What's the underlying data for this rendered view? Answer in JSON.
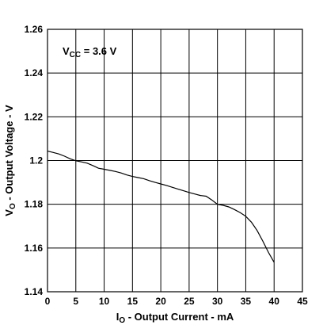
{
  "chart_data": {
    "type": "line",
    "title": "",
    "xlabel": {
      "main": "I",
      "sub": "O",
      "rest": " - Output Current - mA"
    },
    "ylabel": {
      "main": "V",
      "sub": "O",
      "rest": " - Output Voltage - V"
    },
    "xlim": [
      0,
      45
    ],
    "ylim": [
      1.14,
      1.26
    ],
    "xticks": [
      0,
      5,
      10,
      15,
      20,
      25,
      30,
      35,
      40,
      45
    ],
    "xtick_labels": [
      "0",
      "5",
      "10",
      "15",
      "20",
      "25",
      "30",
      "35",
      "40",
      "45"
    ],
    "yticks": [
      1.14,
      1.16,
      1.18,
      1.2,
      1.22,
      1.24,
      1.26
    ],
    "ytick_labels": [
      "1.14",
      "1.16",
      "1.18",
      "1.2",
      "1.22",
      "1.24",
      "1.26"
    ],
    "grid": true,
    "annotation": {
      "main": "V",
      "sub": "CC",
      "rest": " = 3.6 V"
    },
    "series": [
      {
        "x": [
          0,
          1,
          2,
          3,
          4,
          5,
          6,
          7,
          8,
          9,
          10,
          11,
          12,
          13,
          14,
          15,
          16,
          17,
          18,
          19,
          20,
          21,
          22,
          23,
          24,
          25,
          26,
          27,
          28,
          29,
          30,
          31,
          32,
          33,
          34,
          35,
          36,
          37,
          38,
          39,
          40
        ],
        "values": [
          1.2043,
          1.2037,
          1.203,
          1.202,
          1.2008,
          1.1999,
          1.1994,
          1.1988,
          1.1977,
          1.1965,
          1.196,
          1.1955,
          1.195,
          1.1943,
          1.1934,
          1.1927,
          1.1922,
          1.1917,
          1.1908,
          1.19,
          1.1893,
          1.1886,
          1.1878,
          1.187,
          1.1862,
          1.1854,
          1.1847,
          1.184,
          1.1837,
          1.182,
          1.18,
          1.1795,
          1.1788,
          1.1776,
          1.1762,
          1.1745,
          1.1718,
          1.168,
          1.1632,
          1.158,
          1.1535
        ]
      }
    ]
  }
}
